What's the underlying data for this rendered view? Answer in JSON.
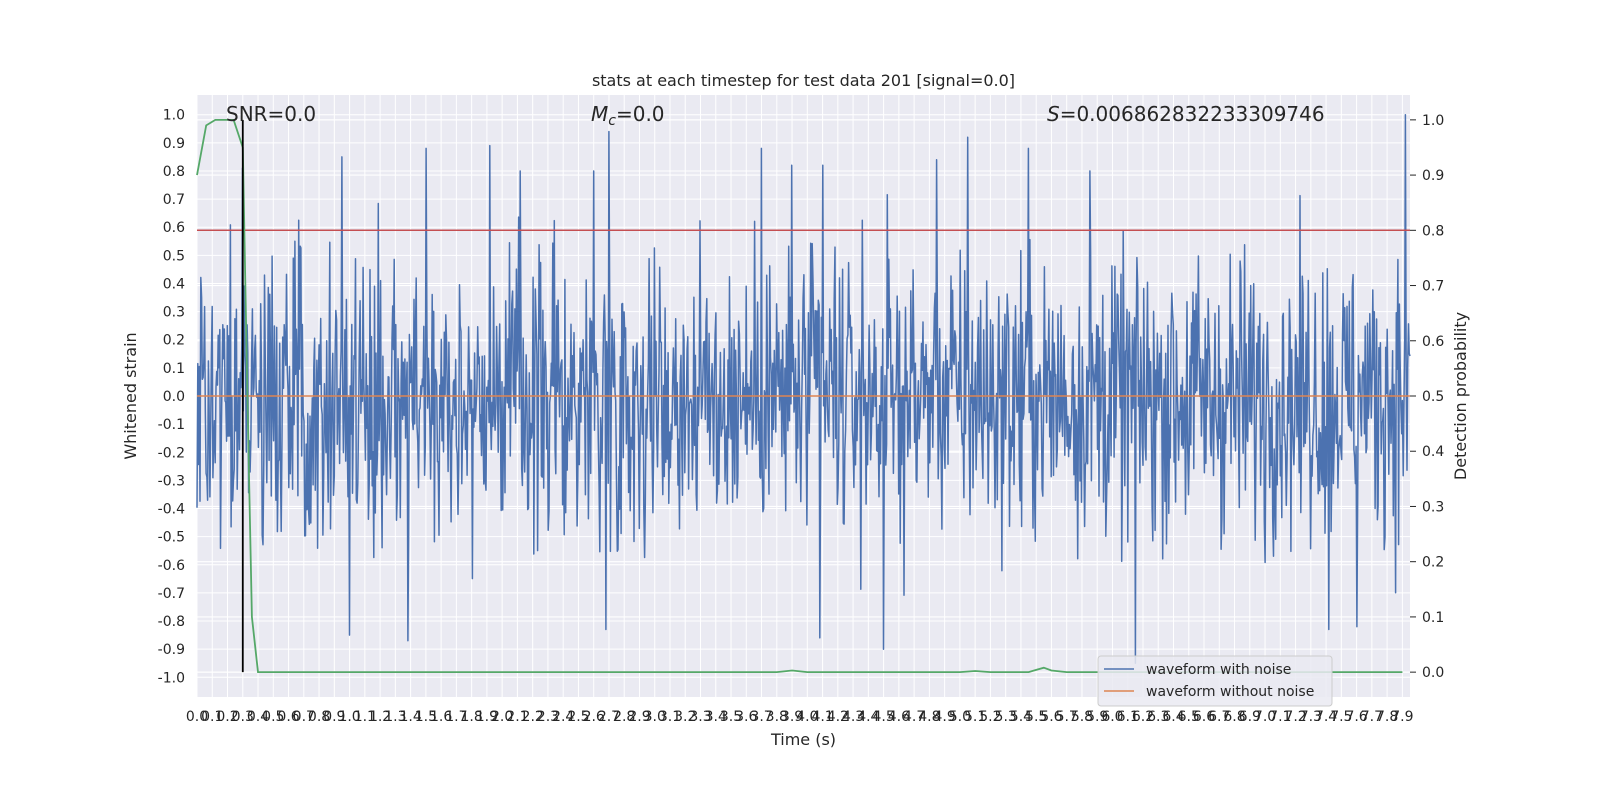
{
  "chart_data": {
    "type": "line",
    "title": "stats at each timestep for test data 201 [signal=0.0]",
    "xlabel": "Time (s)",
    "ylabel": "Whitened strain",
    "y2label": "Detection probability",
    "xlim": [
      0,
      7.95
    ],
    "ylim": [
      -1.07,
      1.07
    ],
    "y2lim": [
      -0.045,
      1.045
    ],
    "x_ticks": [
      "0.0",
      "0.1",
      "0.2",
      "0.3",
      "0.4",
      "0.5",
      "0.6",
      "0.7",
      "0.8",
      "0.9",
      "1.0",
      "1.1",
      "1.2",
      "1.3",
      "1.4",
      "1.5",
      "1.6",
      "1.7",
      "1.8",
      "1.9",
      "2.0",
      "2.1",
      "2.2",
      "2.3",
      "2.4",
      "2.5",
      "2.6",
      "2.7",
      "2.8",
      "2.9",
      "3.0",
      "3.1",
      "3.2",
      "3.3",
      "3.4",
      "3.5",
      "3.6",
      "3.7",
      "3.8",
      "3.9",
      "4.0",
      "4.1",
      "4.2",
      "4.3",
      "4.4",
      "4.5",
      "4.6",
      "4.7",
      "4.8",
      "4.9",
      "5.0",
      "5.1",
      "5.2",
      "5.3",
      "5.4",
      "5.5",
      "5.6",
      "5.7",
      "5.8",
      "5.9",
      "6.0",
      "6.1",
      "6.2",
      "6.3",
      "6.4",
      "6.5",
      "6.6",
      "6.7",
      "6.8",
      "6.9",
      "7.0",
      "7.1",
      "7.2",
      "7.3",
      "7.4",
      "7.5",
      "7.6",
      "7.7",
      "7.8",
      "7.9"
    ],
    "y_ticks": [
      "1.0",
      "0.9",
      "0.8",
      "0.7",
      "0.6",
      "0.5",
      "0.4",
      "0.3",
      "0.2",
      "0.1",
      "0.0",
      "-0.1",
      "-0.2",
      "-0.3",
      "-0.4",
      "-0.5",
      "-0.6",
      "-0.7",
      "-0.8",
      "-0.9",
      "-1.0"
    ],
    "y2_ticks": [
      "1.0",
      "0.9",
      "0.8",
      "0.7",
      "0.6",
      "0.5",
      "0.4",
      "0.3",
      "0.2",
      "0.1",
      "0.0"
    ],
    "grid": true,
    "legend_position": "bottom-right",
    "annotations": {
      "snr": "SNR=0.0",
      "mc_sym": "M",
      "mc_sub": "c",
      "mc_val": "=0.0",
      "s_sym": "S",
      "s_val": "=0.006862832233309746"
    },
    "marker_x": 0.3,
    "threshold_y": 0.8,
    "series": [
      {
        "name": "waveform with noise",
        "color": "#4c72b0",
        "kind": "noise",
        "n_points": 1600,
        "envelope": 0.45,
        "peaks": [
          {
            "x": 0.3,
            "y": 0.81
          },
          {
            "x": 0.95,
            "y": 0.85
          },
          {
            "x": 1.5,
            "y": 0.88
          },
          {
            "x": 1.92,
            "y": 0.89
          },
          {
            "x": 2.12,
            "y": 0.8
          },
          {
            "x": 2.6,
            "y": 0.8
          },
          {
            "x": 2.7,
            "y": 0.94
          },
          {
            "x": 3.7,
            "y": 0.88
          },
          {
            "x": 3.9,
            "y": 0.82
          },
          {
            "x": 4.1,
            "y": 0.82
          },
          {
            "x": 4.85,
            "y": 0.84
          },
          {
            "x": 5.05,
            "y": 0.92
          },
          {
            "x": 5.45,
            "y": 0.88
          },
          {
            "x": 5.85,
            "y": 0.8
          },
          {
            "x": 7.92,
            "y": 1.0
          },
          {
            "x": 1.0,
            "y": -0.85
          },
          {
            "x": 1.38,
            "y": -0.87
          },
          {
            "x": 2.68,
            "y": -0.83
          },
          {
            "x": 4.08,
            "y": -0.86
          },
          {
            "x": 4.5,
            "y": -0.9
          },
          {
            "x": 6.15,
            "y": -0.95
          },
          {
            "x": 7.42,
            "y": -0.83
          },
          {
            "x": 7.6,
            "y": -0.82
          }
        ]
      },
      {
        "name": "waveform without noise",
        "color": "#dd8452",
        "kind": "flat",
        "value": 0.0
      },
      {
        "name": "",
        "color": "#55a868",
        "kind": "probability",
        "axis": "right",
        "x": [
          0.0,
          0.06,
          0.12,
          0.18,
          0.24,
          0.3,
          0.33,
          0.36,
          0.4,
          0.5,
          3.8,
          3.9,
          4.0,
          4.5,
          5.0,
          5.1,
          5.2,
          5.45,
          5.5,
          5.55,
          5.6,
          5.7,
          7.9
        ],
        "values": [
          0.9,
          0.99,
          1.0,
          1.0,
          1.0,
          0.95,
          0.5,
          0.1,
          0.0,
          0.0,
          0.0,
          0.003,
          0.0,
          0.0,
          0.0,
          0.002,
          0.0,
          0.0,
          0.004,
          0.008,
          0.003,
          0.0,
          0.0
        ]
      }
    ],
    "threshold_color": "#c44e52",
    "marker_color": "#000000"
  }
}
